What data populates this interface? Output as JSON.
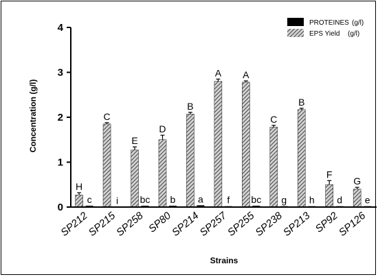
{
  "chart_data": {
    "type": "bar",
    "xlabel": "Strains",
    "ylabel": "Concentration (g/l)",
    "ylim": [
      0,
      4
    ],
    "yticks": [
      "0",
      "1",
      "2",
      "3",
      "4"
    ],
    "legend_position": "top-right",
    "categories": [
      "SP212",
      "SP215",
      "SP258",
      "SP80",
      "SP214",
      "SP257",
      "SP255",
      "SP238",
      "SP213",
      "SP92",
      "SP126"
    ],
    "series": [
      {
        "name": "EPS Yield",
        "legend_unit": "(g/l)",
        "color": "#6f6f6f",
        "pattern": "hatched",
        "values": [
          0.27,
          1.85,
          1.27,
          1.5,
          2.07,
          2.8,
          2.78,
          1.78,
          2.17,
          0.5,
          0.4
        ],
        "errors": [
          0.05,
          0.03,
          0.07,
          0.1,
          0.04,
          0.05,
          0.03,
          0.04,
          0.03,
          0.09,
          0.04
        ],
        "labels": [
          "H",
          "C",
          "E",
          "D",
          "B",
          "A",
          "A",
          "C",
          "B",
          "F",
          "G"
        ]
      },
      {
        "name": "PROTEINES",
        "legend_unit": "(g/l)",
        "color": "#000000",
        "pattern": "solid",
        "values": [
          0.03,
          0.01,
          0.03,
          0.03,
          0.04,
          0.02,
          0.03,
          0.02,
          0.02,
          0.02,
          0.02
        ],
        "errors": [
          0,
          0,
          0,
          0,
          0,
          0,
          0,
          0,
          0,
          0,
          0
        ],
        "labels": [
          "c",
          "i",
          "bc",
          "b",
          "a",
          "f",
          "bc",
          "g",
          "h",
          "d",
          "e"
        ]
      }
    ]
  }
}
